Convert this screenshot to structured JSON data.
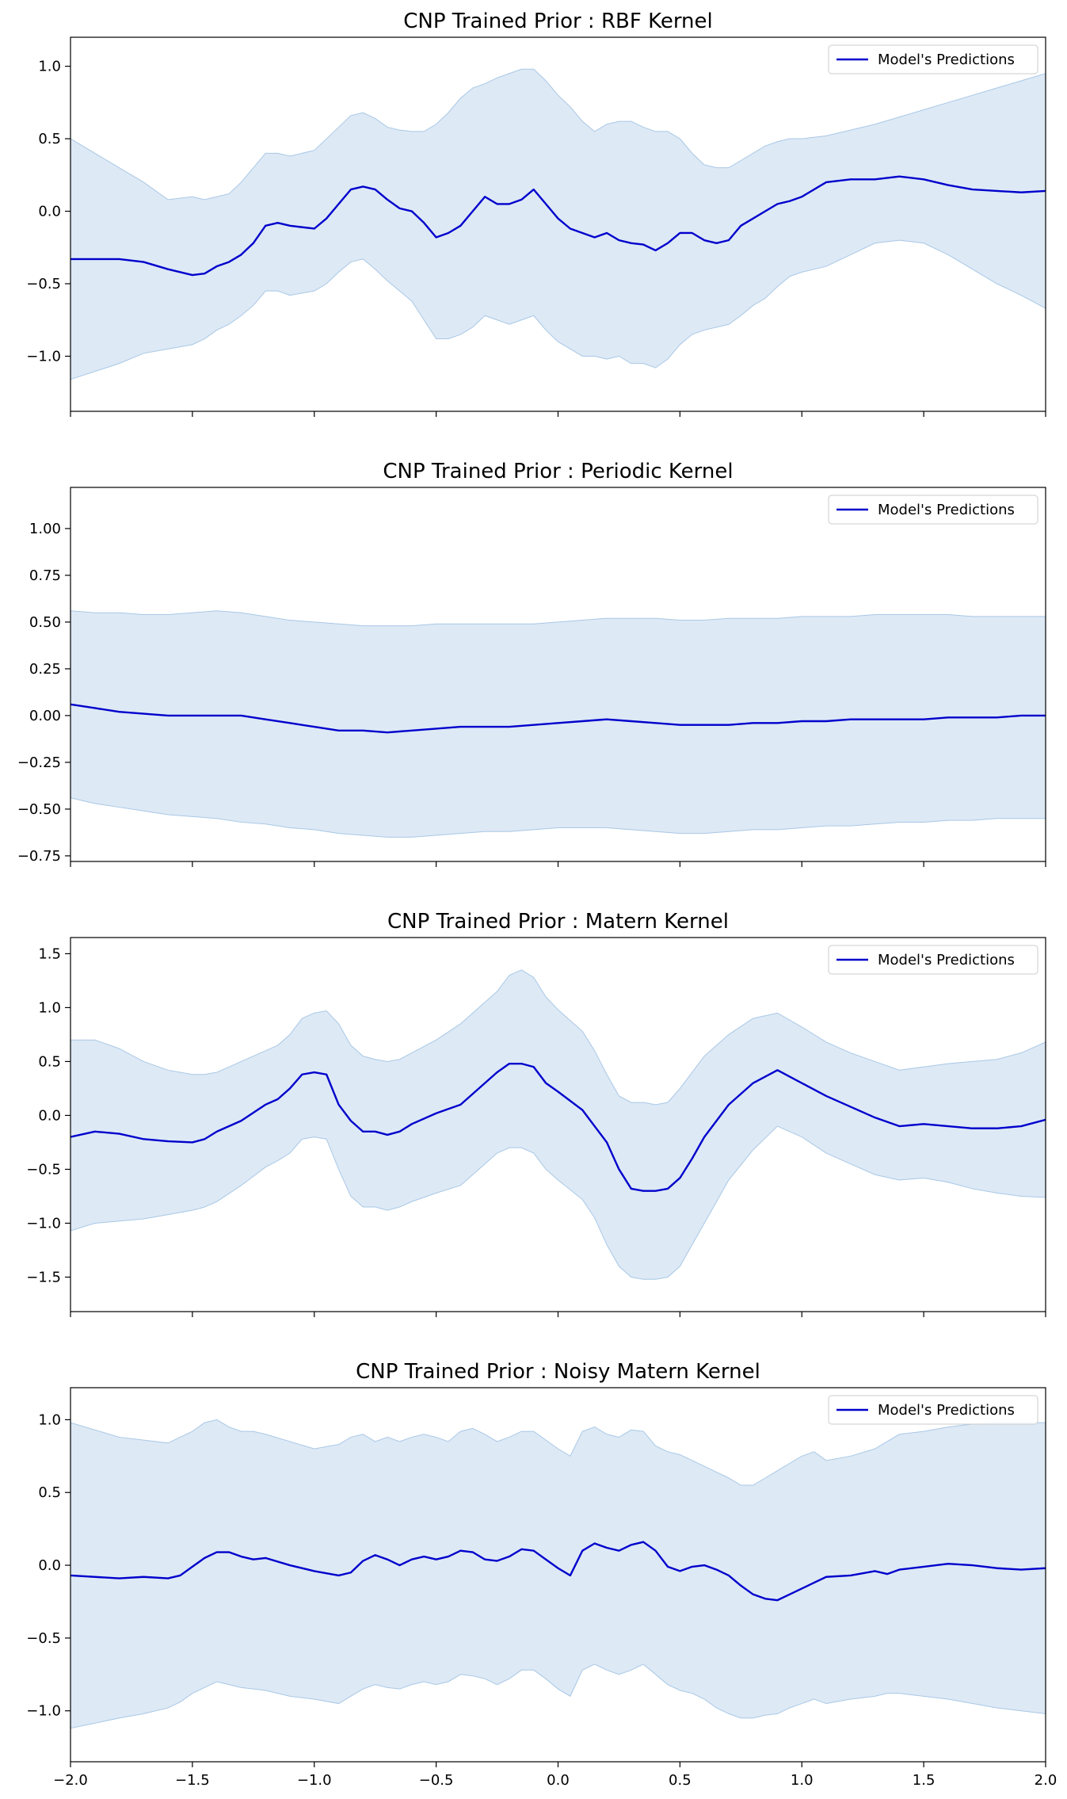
{
  "chart_data": [
    {
      "type": "line",
      "title": "CNP Trained Prior : RBF Kernel",
      "xlim": [
        -2.0,
        2.0
      ],
      "ylim": [
        -1.38,
        1.2
      ],
      "yticks": [
        1.0,
        0.5,
        0.0,
        -0.5,
        -1.0
      ],
      "ytick_labels": [
        "1.0",
        "0.5",
        "0.0",
        "−0.5",
        "−1.0"
      ],
      "grid": false,
      "legend_position": "top-right",
      "series": [
        {
          "name": "Model's Predictions",
          "color": "#0000cc",
          "x": [
            -2.0,
            -1.8,
            -1.7,
            -1.6,
            -1.5,
            -1.45,
            -1.4,
            -1.35,
            -1.3,
            -1.25,
            -1.2,
            -1.15,
            -1.1,
            -1.0,
            -0.95,
            -0.9,
            -0.85,
            -0.8,
            -0.75,
            -0.7,
            -0.65,
            -0.6,
            -0.55,
            -0.5,
            -0.45,
            -0.4,
            -0.35,
            -0.3,
            -0.25,
            -0.2,
            -0.15,
            -0.1,
            -0.05,
            0.0,
            0.05,
            0.1,
            0.15,
            0.2,
            0.25,
            0.3,
            0.35,
            0.4,
            0.45,
            0.5,
            0.55,
            0.6,
            0.65,
            0.7,
            0.75,
            0.8,
            0.85,
            0.9,
            0.95,
            1.0,
            1.1,
            1.2,
            1.3,
            1.4,
            1.5,
            1.6,
            1.7,
            1.8,
            1.9,
            2.0
          ],
          "y": [
            -0.33,
            -0.33,
            -0.35,
            -0.4,
            -0.44,
            -0.43,
            -0.38,
            -0.35,
            -0.3,
            -0.22,
            -0.1,
            -0.08,
            -0.1,
            -0.12,
            -0.05,
            0.05,
            0.15,
            0.17,
            0.15,
            0.08,
            0.02,
            0.0,
            -0.08,
            -0.18,
            -0.15,
            -0.1,
            0.0,
            0.1,
            0.05,
            0.05,
            0.08,
            0.15,
            0.05,
            -0.05,
            -0.12,
            -0.15,
            -0.18,
            -0.15,
            -0.2,
            -0.22,
            -0.23,
            -0.27,
            -0.22,
            -0.15,
            -0.15,
            -0.2,
            -0.22,
            -0.2,
            -0.1,
            -0.05,
            0.0,
            0.05,
            0.07,
            0.1,
            0.2,
            0.22,
            0.22,
            0.24,
            0.22,
            0.18,
            0.15,
            0.14,
            0.13,
            0.14
          ],
          "upper": [
            0.5,
            0.3,
            0.2,
            0.08,
            0.1,
            0.08,
            0.1,
            0.12,
            0.2,
            0.3,
            0.4,
            0.4,
            0.38,
            0.42,
            0.5,
            0.58,
            0.66,
            0.68,
            0.64,
            0.58,
            0.56,
            0.55,
            0.55,
            0.6,
            0.68,
            0.78,
            0.85,
            0.88,
            0.92,
            0.95,
            0.98,
            0.98,
            0.9,
            0.8,
            0.72,
            0.62,
            0.55,
            0.6,
            0.62,
            0.62,
            0.58,
            0.55,
            0.55,
            0.5,
            0.4,
            0.32,
            0.3,
            0.3,
            0.35,
            0.4,
            0.45,
            0.48,
            0.5,
            0.5,
            0.52,
            0.56,
            0.6,
            0.65,
            0.7,
            0.75,
            0.8,
            0.85,
            0.9,
            0.95
          ],
          "lower": [
            -1.16,
            -1.05,
            -0.98,
            -0.95,
            -0.92,
            -0.88,
            -0.82,
            -0.78,
            -0.72,
            -0.65,
            -0.55,
            -0.55,
            -0.58,
            -0.55,
            -0.5,
            -0.42,
            -0.35,
            -0.33,
            -0.4,
            -0.48,
            -0.55,
            -0.62,
            -0.75,
            -0.88,
            -0.88,
            -0.85,
            -0.8,
            -0.72,
            -0.75,
            -0.78,
            -0.75,
            -0.72,
            -0.82,
            -0.9,
            -0.95,
            -1.0,
            -1.0,
            -1.02,
            -1.0,
            -1.05,
            -1.05,
            -1.08,
            -1.02,
            -0.92,
            -0.85,
            -0.82,
            -0.8,
            -0.78,
            -0.72,
            -0.65,
            -0.6,
            -0.52,
            -0.45,
            -0.42,
            -0.38,
            -0.3,
            -0.22,
            -0.2,
            -0.22,
            -0.3,
            -0.4,
            -0.5,
            -0.58,
            -0.67
          ]
        }
      ]
    },
    {
      "type": "line",
      "title": "CNP Trained Prior : Periodic Kernel",
      "xlim": [
        -2.0,
        2.0
      ],
      "ylim": [
        -0.78,
        1.22
      ],
      "yticks": [
        1.0,
        0.75,
        0.5,
        0.25,
        0.0,
        -0.25,
        -0.5,
        -0.75
      ],
      "ytick_labels": [
        "1.00",
        "0.75",
        "0.50",
        "0.25",
        "0.00",
        "−0.25",
        "−0.50",
        "−0.75"
      ],
      "grid": false,
      "legend_position": "top-right",
      "series": [
        {
          "name": "Model's Predictions",
          "color": "#0000cc",
          "x": [
            -2.0,
            -1.9,
            -1.8,
            -1.7,
            -1.6,
            -1.5,
            -1.4,
            -1.3,
            -1.2,
            -1.1,
            -1.0,
            -0.9,
            -0.8,
            -0.7,
            -0.6,
            -0.5,
            -0.4,
            -0.3,
            -0.2,
            -0.1,
            0.0,
            0.1,
            0.2,
            0.3,
            0.4,
            0.5,
            0.6,
            0.7,
            0.8,
            0.9,
            1.0,
            1.1,
            1.2,
            1.3,
            1.4,
            1.5,
            1.6,
            1.7,
            1.8,
            1.9,
            2.0
          ],
          "y": [
            0.06,
            0.04,
            0.02,
            0.01,
            0.0,
            0.0,
            0.0,
            0.0,
            -0.02,
            -0.04,
            -0.06,
            -0.08,
            -0.08,
            -0.09,
            -0.08,
            -0.07,
            -0.06,
            -0.06,
            -0.06,
            -0.05,
            -0.04,
            -0.03,
            -0.02,
            -0.03,
            -0.04,
            -0.05,
            -0.05,
            -0.05,
            -0.04,
            -0.04,
            -0.03,
            -0.03,
            -0.02,
            -0.02,
            -0.02,
            -0.02,
            -0.01,
            -0.01,
            -0.01,
            0.0,
            0.0
          ],
          "upper": [
            0.56,
            0.55,
            0.55,
            0.54,
            0.54,
            0.55,
            0.56,
            0.55,
            0.53,
            0.51,
            0.5,
            0.49,
            0.48,
            0.48,
            0.48,
            0.49,
            0.49,
            0.49,
            0.49,
            0.49,
            0.5,
            0.51,
            0.52,
            0.52,
            0.52,
            0.51,
            0.51,
            0.52,
            0.52,
            0.52,
            0.53,
            0.53,
            0.53,
            0.54,
            0.54,
            0.54,
            0.54,
            0.53,
            0.53,
            0.53,
            0.53
          ],
          "lower": [
            -0.44,
            -0.47,
            -0.49,
            -0.51,
            -0.53,
            -0.54,
            -0.55,
            -0.57,
            -0.58,
            -0.6,
            -0.61,
            -0.63,
            -0.64,
            -0.65,
            -0.65,
            -0.64,
            -0.63,
            -0.62,
            -0.62,
            -0.61,
            -0.6,
            -0.6,
            -0.6,
            -0.61,
            -0.62,
            -0.63,
            -0.63,
            -0.62,
            -0.61,
            -0.61,
            -0.6,
            -0.59,
            -0.59,
            -0.58,
            -0.57,
            -0.57,
            -0.56,
            -0.56,
            -0.55,
            -0.55,
            -0.55
          ]
        }
      ]
    },
    {
      "type": "line",
      "title": "CNP Trained Prior : Matern Kernel",
      "xlim": [
        -2.0,
        2.0
      ],
      "ylim": [
        -1.82,
        1.65
      ],
      "yticks": [
        1.5,
        1.0,
        0.5,
        0.0,
        -0.5,
        -1.0,
        -1.5
      ],
      "ytick_labels": [
        "1.5",
        "1.0",
        "0.5",
        "0.0",
        "−0.5",
        "−1.0",
        "−1.5"
      ],
      "grid": false,
      "legend_position": "top-right",
      "series": [
        {
          "name": "Model's Predictions",
          "color": "#0000cc",
          "x": [
            -2.0,
            -1.9,
            -1.8,
            -1.7,
            -1.6,
            -1.5,
            -1.45,
            -1.4,
            -1.3,
            -1.2,
            -1.15,
            -1.1,
            -1.05,
            -1.0,
            -0.95,
            -0.9,
            -0.85,
            -0.8,
            -0.75,
            -0.7,
            -0.65,
            -0.6,
            -0.5,
            -0.4,
            -0.35,
            -0.3,
            -0.25,
            -0.2,
            -0.15,
            -0.1,
            -0.05,
            0.0,
            0.1,
            0.15,
            0.2,
            0.25,
            0.3,
            0.35,
            0.4,
            0.45,
            0.5,
            0.55,
            0.6,
            0.65,
            0.7,
            0.8,
            0.9,
            1.0,
            1.1,
            1.2,
            1.3,
            1.4,
            1.5,
            1.6,
            1.7,
            1.8,
            1.9,
            2.0
          ],
          "y": [
            -0.2,
            -0.15,
            -0.17,
            -0.22,
            -0.24,
            -0.25,
            -0.22,
            -0.15,
            -0.05,
            0.1,
            0.15,
            0.25,
            0.38,
            0.4,
            0.38,
            0.1,
            -0.05,
            -0.15,
            -0.15,
            -0.18,
            -0.15,
            -0.08,
            0.02,
            0.1,
            0.2,
            0.3,
            0.4,
            0.48,
            0.48,
            0.45,
            0.3,
            0.22,
            0.05,
            -0.1,
            -0.25,
            -0.5,
            -0.68,
            -0.7,
            -0.7,
            -0.68,
            -0.58,
            -0.4,
            -0.2,
            -0.05,
            0.1,
            0.3,
            0.42,
            0.3,
            0.18,
            0.08,
            -0.02,
            -0.1,
            -0.08,
            -0.1,
            -0.12,
            -0.12,
            -0.1,
            -0.04
          ],
          "upper": [
            0.7,
            0.7,
            0.62,
            0.5,
            0.42,
            0.38,
            0.38,
            0.4,
            0.5,
            0.6,
            0.65,
            0.75,
            0.9,
            0.95,
            0.97,
            0.85,
            0.65,
            0.55,
            0.52,
            0.5,
            0.52,
            0.58,
            0.7,
            0.85,
            0.95,
            1.05,
            1.15,
            1.3,
            1.35,
            1.28,
            1.1,
            0.98,
            0.78,
            0.6,
            0.38,
            0.18,
            0.12,
            0.12,
            0.1,
            0.12,
            0.25,
            0.4,
            0.55,
            0.65,
            0.75,
            0.9,
            0.95,
            0.82,
            0.68,
            0.58,
            0.5,
            0.42,
            0.45,
            0.48,
            0.5,
            0.52,
            0.58,
            0.68
          ],
          "lower": [
            -1.07,
            -1.0,
            -0.98,
            -0.96,
            -0.92,
            -0.88,
            -0.85,
            -0.8,
            -0.65,
            -0.48,
            -0.42,
            -0.35,
            -0.22,
            -0.2,
            -0.22,
            -0.5,
            -0.75,
            -0.85,
            -0.85,
            -0.88,
            -0.85,
            -0.8,
            -0.72,
            -0.65,
            -0.55,
            -0.45,
            -0.35,
            -0.3,
            -0.3,
            -0.35,
            -0.5,
            -0.6,
            -0.78,
            -0.95,
            -1.2,
            -1.4,
            -1.5,
            -1.52,
            -1.52,
            -1.5,
            -1.4,
            -1.2,
            -1.0,
            -0.8,
            -0.6,
            -0.32,
            -0.1,
            -0.2,
            -0.35,
            -0.45,
            -0.55,
            -0.6,
            -0.58,
            -0.62,
            -0.68,
            -0.72,
            -0.75,
            -0.76
          ]
        }
      ]
    },
    {
      "type": "line",
      "title": "CNP Trained Prior : Noisy Matern Kernel",
      "xlim": [
        -2.0,
        2.0
      ],
      "ylim": [
        -1.35,
        1.22
      ],
      "yticks": [
        1.0,
        0.5,
        0.0,
        -0.5,
        -1.0
      ],
      "ytick_labels": [
        "1.0",
        "0.5",
        "0.0",
        "−0.5",
        "−1.0"
      ],
      "grid": false,
      "legend_position": "top-right",
      "series": [
        {
          "name": "Model's Predictions",
          "color": "#0000cc",
          "x": [
            -2.0,
            -1.8,
            -1.7,
            -1.6,
            -1.55,
            -1.5,
            -1.45,
            -1.4,
            -1.35,
            -1.3,
            -1.25,
            -1.2,
            -1.1,
            -1.0,
            -0.9,
            -0.85,
            -0.8,
            -0.75,
            -0.7,
            -0.65,
            -0.6,
            -0.55,
            -0.5,
            -0.45,
            -0.4,
            -0.35,
            -0.3,
            -0.25,
            -0.2,
            -0.15,
            -0.1,
            -0.05,
            0.0,
            0.05,
            0.1,
            0.15,
            0.2,
            0.25,
            0.3,
            0.35,
            0.4,
            0.45,
            0.5,
            0.55,
            0.6,
            0.65,
            0.7,
            0.75,
            0.8,
            0.85,
            0.9,
            0.95,
            1.0,
            1.05,
            1.1,
            1.2,
            1.3,
            1.35,
            1.4,
            1.5,
            1.6,
            1.7,
            1.8,
            1.9,
            2.0
          ],
          "y": [
            -0.07,
            -0.09,
            -0.08,
            -0.09,
            -0.07,
            -0.01,
            0.05,
            0.09,
            0.09,
            0.06,
            0.04,
            0.05,
            0.0,
            -0.04,
            -0.07,
            -0.05,
            0.03,
            0.07,
            0.04,
            0.0,
            0.04,
            0.06,
            0.04,
            0.06,
            0.1,
            0.09,
            0.04,
            0.03,
            0.06,
            0.11,
            0.1,
            0.04,
            -0.02,
            -0.07,
            0.1,
            0.15,
            0.12,
            0.1,
            0.14,
            0.16,
            0.1,
            -0.01,
            -0.04,
            -0.01,
            0.0,
            -0.03,
            -0.07,
            -0.14,
            -0.2,
            -0.23,
            -0.24,
            -0.2,
            -0.16,
            -0.12,
            -0.08,
            -0.07,
            -0.04,
            -0.06,
            -0.03,
            -0.01,
            0.01,
            0.0,
            -0.02,
            -0.03,
            -0.02
          ],
          "upper": [
            0.98,
            0.88,
            0.86,
            0.84,
            0.88,
            0.92,
            0.98,
            1.0,
            0.95,
            0.92,
            0.92,
            0.9,
            0.85,
            0.8,
            0.83,
            0.88,
            0.9,
            0.85,
            0.88,
            0.85,
            0.88,
            0.9,
            0.88,
            0.85,
            0.92,
            0.94,
            0.9,
            0.85,
            0.88,
            0.92,
            0.92,
            0.86,
            0.8,
            0.75,
            0.92,
            0.95,
            0.9,
            0.88,
            0.93,
            0.92,
            0.82,
            0.78,
            0.76,
            0.72,
            0.68,
            0.64,
            0.6,
            0.55,
            0.55,
            0.6,
            0.65,
            0.7,
            0.75,
            0.78,
            0.72,
            0.75,
            0.8,
            0.85,
            0.9,
            0.92,
            0.95,
            0.97,
            0.98,
            0.98,
            0.98
          ],
          "lower": [
            -1.12,
            -1.05,
            -1.02,
            -0.98,
            -0.94,
            -0.88,
            -0.84,
            -0.8,
            -0.82,
            -0.84,
            -0.85,
            -0.86,
            -0.9,
            -0.92,
            -0.95,
            -0.9,
            -0.85,
            -0.82,
            -0.84,
            -0.85,
            -0.82,
            -0.8,
            -0.82,
            -0.8,
            -0.75,
            -0.76,
            -0.78,
            -0.82,
            -0.78,
            -0.72,
            -0.72,
            -0.78,
            -0.85,
            -0.9,
            -0.72,
            -0.68,
            -0.72,
            -0.75,
            -0.72,
            -0.68,
            -0.75,
            -0.82,
            -0.86,
            -0.88,
            -0.92,
            -0.98,
            -1.02,
            -1.05,
            -1.05,
            -1.03,
            -1.02,
            -0.98,
            -0.95,
            -0.92,
            -0.95,
            -0.92,
            -0.9,
            -0.88,
            -0.88,
            -0.9,
            -0.92,
            -0.95,
            -0.98,
            -1.0,
            -1.02
          ]
        }
      ]
    }
  ],
  "xticks": [
    -2.0,
    -1.5,
    -1.0,
    -0.5,
    0.0,
    0.5,
    1.0,
    1.5,
    2.0
  ],
  "xtick_labels": [
    "−2.0",
    "−1.5",
    "−1.0",
    "−0.5",
    "0.0",
    "0.5",
    "1.0",
    "1.5",
    "2.0"
  ],
  "colors": {
    "line": "#0000cc",
    "band": "#c6dbef",
    "band_edge": "#a9c8e6",
    "axes": "#000000"
  }
}
